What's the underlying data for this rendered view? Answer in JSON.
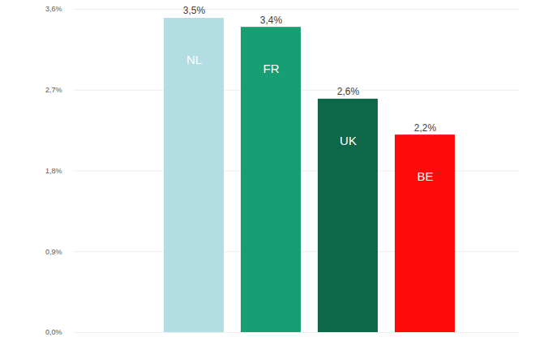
{
  "chart_data": {
    "type": "bar",
    "categories": [
      "NL",
      "FR",
      "UK",
      "BE"
    ],
    "values": [
      3.5,
      3.4,
      2.6,
      2.2
    ],
    "value_labels": [
      "3,5%",
      "3,4%",
      "2,6%",
      "2,2%"
    ],
    "colors": [
      "#b2dde3",
      "#179e72",
      "#0d6849",
      "#ff0a0a"
    ],
    "ylim": [
      0,
      3.6
    ],
    "yticks": [
      {
        "value": 0,
        "label": "0,0%"
      },
      {
        "value": 0.9,
        "label": "0,9%"
      },
      {
        "value": 1.8,
        "label": "1,8%"
      },
      {
        "value": 2.7,
        "label": "2,7%"
      },
      {
        "value": 3.6,
        "label": "3,6%"
      }
    ],
    "grid": true,
    "data_labels": true,
    "tick_labels": "y"
  }
}
